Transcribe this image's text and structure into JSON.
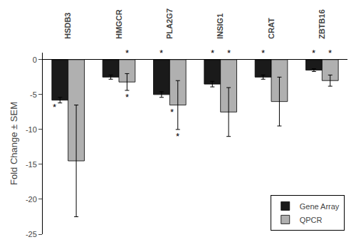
{
  "chart_data": {
    "type": "bar",
    "categories": [
      "HSDB3",
      "HMGCR",
      "PLA2G7",
      "INSIG1",
      "CRAT",
      "ZBTB16"
    ],
    "series": [
      {
        "name": "Gene Array",
        "color": "#1a1a1a",
        "values": [
          -5.8,
          -2.5,
          -5.0,
          -3.5,
          -2.5,
          -1.5
        ],
        "errors": [
          0.4,
          0.3,
          0.4,
          0.4,
          0.3,
          0.2
        ]
      },
      {
        "name": "QPCR",
        "color": "#b0b0b0",
        "values": [
          -14.5,
          -3.2,
          -6.5,
          -7.5,
          -6.0,
          -3.0
        ],
        "errors": [
          8.0,
          1.2,
          3.5,
          3.5,
          3.5,
          0.8
        ]
      }
    ],
    "ylabel": "Fold Change ± SEM",
    "ylim": [
      -25,
      1
    ],
    "yticks": [
      0,
      -5,
      -10,
      -15,
      -20,
      -25
    ],
    "grid": false,
    "legend": "lower right",
    "annotations": [
      {
        "text": "*",
        "category": "HSDB3",
        "series": "Gene Array",
        "position": "below_bar"
      },
      {
        "text": "*",
        "category": "HMGCR",
        "series": "QPCR",
        "position": "above_bar"
      },
      {
        "text": "*",
        "category": "HMGCR",
        "series": "QPCR",
        "position": "below_error"
      },
      {
        "text": "*",
        "category": "PLA2G7",
        "series": "Gene Array",
        "position": "above_bar"
      },
      {
        "text": "*",
        "category": "PLA2G7",
        "series": "QPCR",
        "position": "below_bar"
      },
      {
        "text": "*",
        "category": "PLA2G7",
        "series": "QPCR",
        "position": "below_error"
      },
      {
        "text": "*",
        "category": "INSIG1",
        "series": "Gene Array",
        "position": "above_bar"
      },
      {
        "text": "*",
        "category": "INSIG1",
        "series": "QPCR",
        "position": "above_bar"
      },
      {
        "text": "*",
        "category": "CRAT",
        "series": "Gene Array",
        "position": "above_bar"
      },
      {
        "text": "*",
        "category": "ZBTB16",
        "series": "Gene Array",
        "position": "above_bar"
      },
      {
        "text": "*",
        "category": "ZBTB16",
        "series": "QPCR",
        "position": "above_bar"
      }
    ]
  }
}
